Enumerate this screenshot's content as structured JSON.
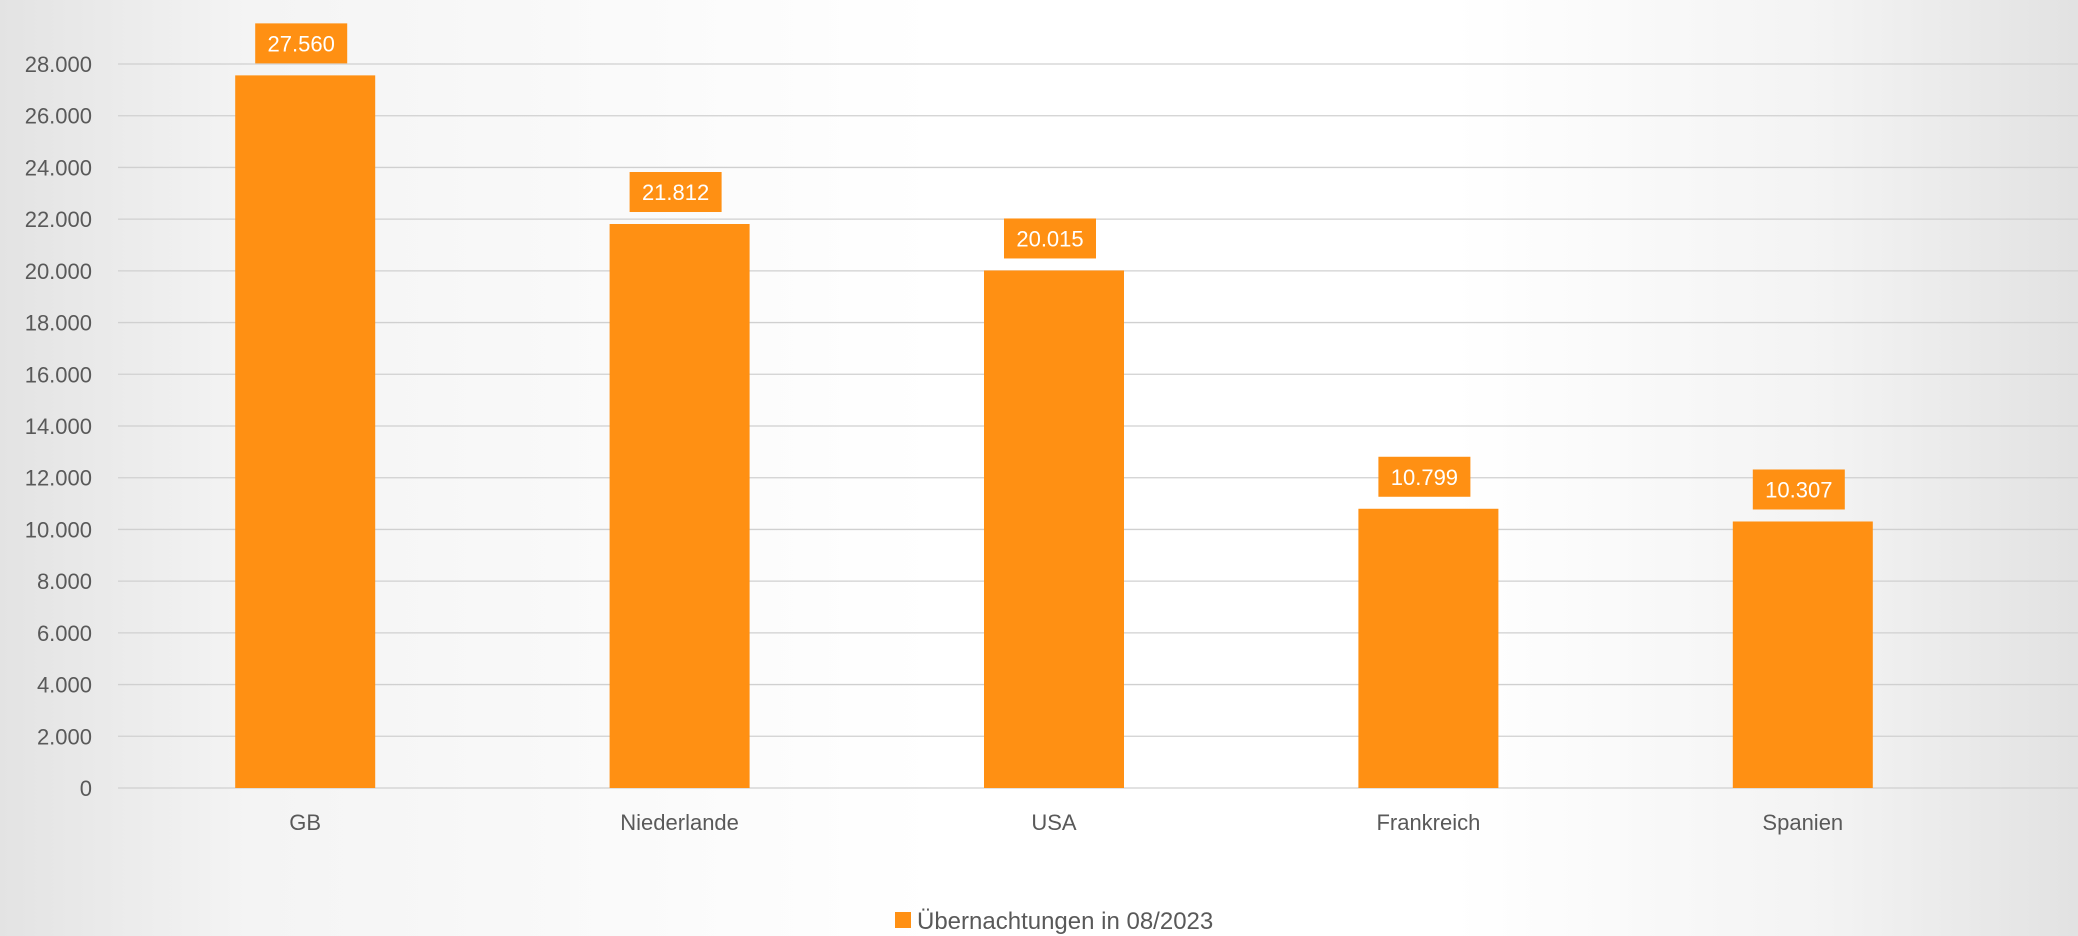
{
  "chart_data": {
    "type": "bar",
    "categories": [
      "GB",
      "Niederlande",
      "USA",
      "Frankreich",
      "Spanien"
    ],
    "series": [
      {
        "name": "Übernachtungen in 08/2023",
        "values": [
          27560,
          21812,
          20015,
          10799,
          10307
        ],
        "value_labels": [
          "27.560",
          "21.812",
          "20.015",
          "10.799",
          "10.307"
        ]
      }
    ],
    "ylim": [
      0,
      28000
    ],
    "y_ticks": [
      0,
      2000,
      4000,
      6000,
      8000,
      10000,
      12000,
      14000,
      16000,
      18000,
      20000,
      22000,
      24000,
      26000,
      28000
    ],
    "y_tick_labels": [
      "0",
      "2.000",
      "4.000",
      "6.000",
      "8.000",
      "10.000",
      "12.000",
      "14.000",
      "16.000",
      "18.000",
      "20.000",
      "22.000",
      "24.000",
      "26.000",
      "28.000"
    ],
    "grid": true,
    "legend_position": "bottom",
    "colors": {
      "bar": "#FF9013",
      "grid": "#d0d0d0",
      "text": "#595959",
      "data_label_text": "#ffffff"
    }
  }
}
